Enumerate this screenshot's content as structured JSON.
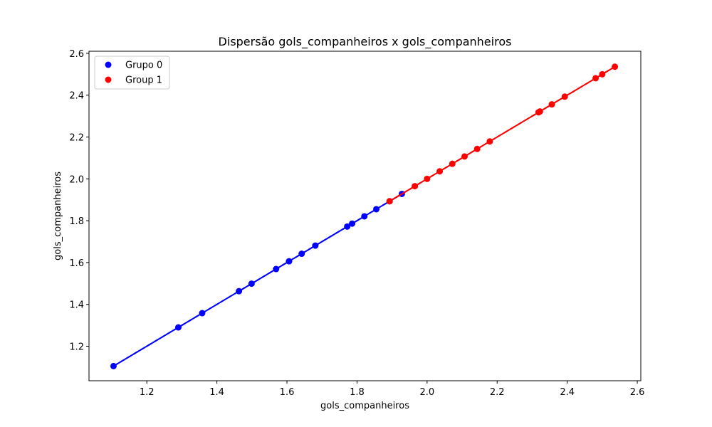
{
  "chart_data": {
    "type": "scatter",
    "title": "Dispersão gols_companheiros x gols_companheiros",
    "xlabel": "gols_companheiros",
    "ylabel": "gols_companheiros",
    "xlim": [
      1.035,
      2.61
    ],
    "ylim": [
      1.035,
      2.61
    ],
    "xticks": [
      1.2,
      1.4,
      1.6,
      1.8,
      2.0,
      2.2,
      2.4,
      2.6
    ],
    "yticks": [
      1.2,
      1.4,
      1.6,
      1.8,
      2.0,
      2.2,
      2.4,
      2.6
    ],
    "xtick_labels": [
      "1.2",
      "1.4",
      "1.6",
      "1.8",
      "2.0",
      "2.2",
      "2.4",
      "2.6"
    ],
    "ytick_labels": [
      "1.2",
      "1.4",
      "1.6",
      "1.8",
      "2.0",
      "2.2",
      "2.4",
      "2.6"
    ],
    "grid": false,
    "legend_position": "top-left",
    "series": [
      {
        "name": "Grupo 0",
        "color": "#0000ff",
        "x": [
          1.105,
          1.29,
          1.358,
          1.463,
          1.499,
          1.569,
          1.606,
          1.642,
          1.681,
          1.772,
          1.786,
          1.821,
          1.855,
          1.893,
          1.928
        ],
        "y": [
          1.105,
          1.29,
          1.358,
          1.463,
          1.499,
          1.569,
          1.606,
          1.642,
          1.681,
          1.772,
          1.786,
          1.821,
          1.855,
          1.893,
          1.928
        ],
        "fit_line": {
          "x": [
            1.105,
            1.928
          ],
          "y": [
            1.105,
            1.928
          ],
          "style": "dashed"
        }
      },
      {
        "name": "Group 1",
        "color": "#ff0000",
        "x": [
          1.893,
          1.965,
          2.0,
          2.036,
          2.072,
          2.107,
          2.143,
          2.179,
          2.318,
          2.322,
          2.356,
          2.393,
          2.481,
          2.5,
          2.536
        ],
        "y": [
          1.893,
          1.965,
          2.0,
          2.036,
          2.072,
          2.107,
          2.143,
          2.179,
          2.318,
          2.322,
          2.356,
          2.393,
          2.481,
          2.5,
          2.536
        ],
        "fit_line": {
          "x": [
            1.893,
            2.536
          ],
          "y": [
            1.893,
            2.536
          ],
          "style": "dashed"
        }
      }
    ]
  }
}
